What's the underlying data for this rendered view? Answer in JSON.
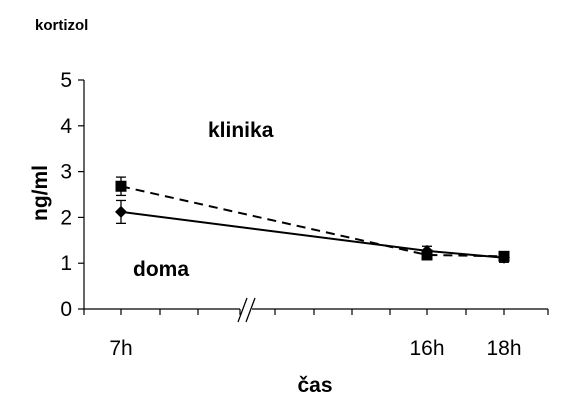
{
  "chart_data": {
    "type": "line",
    "title": "kortizol",
    "xlabel": "čas",
    "ylabel": "ng/ml",
    "ylim": [
      0,
      5
    ],
    "yticks": [
      "0",
      "1",
      "2",
      "3",
      "4",
      "5"
    ],
    "x": [
      "7h",
      "16h",
      "18h"
    ],
    "axis_break": "//",
    "grid": false,
    "series": [
      {
        "name": "klinika",
        "style": "dashed",
        "marker": "square",
        "values": [
          2.68,
          1.18,
          1.15
        ],
        "error": [
          0.2,
          0.1,
          0.1
        ]
      },
      {
        "name": "doma",
        "style": "solid",
        "marker": "diamond",
        "values": [
          2.12,
          1.27,
          1.12
        ],
        "error": [
          0.25,
          0.1,
          0.1
        ]
      }
    ],
    "colors": {
      "line": "#000000",
      "background": "#ffffff"
    }
  }
}
